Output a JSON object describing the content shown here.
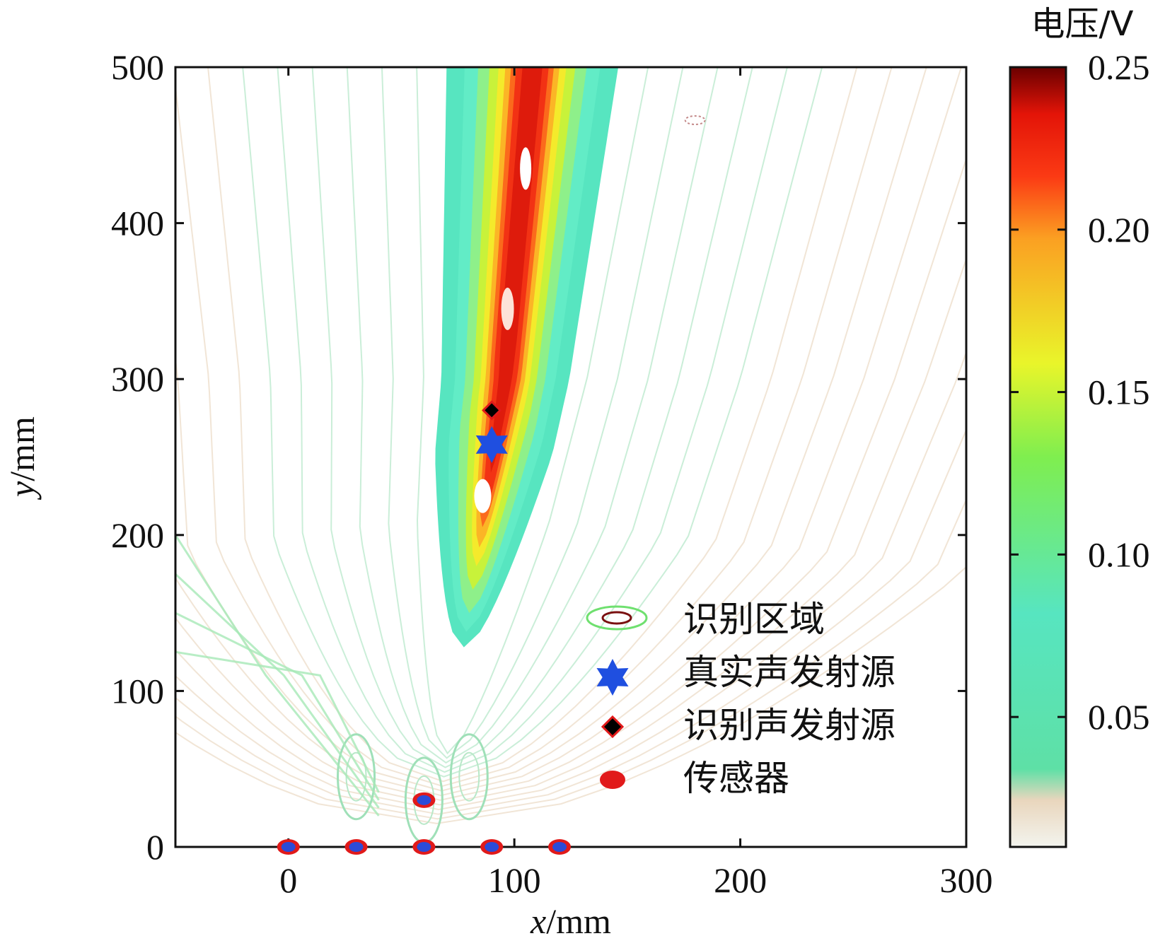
{
  "chart_data": {
    "type": "heatmap",
    "subtype": "contour",
    "xlabel": {
      "var": "x",
      "unit": "/mm"
    },
    "ylabel": {
      "var": "y",
      "unit": "/mm"
    },
    "xlim": [
      -50,
      300
    ],
    "ylim": [
      0,
      500
    ],
    "xticks": [
      0,
      100,
      200,
      300
    ],
    "yticks": [
      0,
      100,
      200,
      300,
      400,
      500
    ],
    "colorbar": {
      "title": "电压/V",
      "range": [
        0.01,
        0.25
      ],
      "ticks": [
        "0.05",
        "0.10",
        "0.15",
        "0.20",
        "0.25"
      ],
      "tick_values": [
        0.05,
        0.1,
        0.15,
        0.2,
        0.25
      ],
      "colors": [
        "#f3f4ee",
        "#e9d6bd",
        "#5ee0a6",
        "#57e5c0",
        "#7fee4f",
        "#e9f52a",
        "#fba022",
        "#fb3a14",
        "#e31408",
        "#6a0000"
      ]
    },
    "contour_peak": {
      "x": 96,
      "y": 300,
      "value": 0.24
    },
    "beam_axis": [
      [
        80,
        150
      ],
      [
        96,
        300
      ],
      [
        108,
        500
      ]
    ],
    "true_source": {
      "x": 90,
      "y": 258
    },
    "identified_source": {
      "x": 90,
      "y": 280
    },
    "sensors": [
      {
        "x": 0,
        "y": 0
      },
      {
        "x": 30,
        "y": 0
      },
      {
        "x": 60,
        "y": 0
      },
      {
        "x": 90,
        "y": 0
      },
      {
        "x": 120,
        "y": 0
      },
      {
        "x": 60,
        "y": 30
      }
    ],
    "legend": [
      {
        "label": "识别区域",
        "marker": "contour-ellipse"
      },
      {
        "label": "真实声发射源",
        "marker": "star",
        "color": "#1f4fe0"
      },
      {
        "label": "识别声发射源",
        "marker": "diamond",
        "color": "#000000",
        "edge": "#e11a1a"
      },
      {
        "label": "传感器",
        "marker": "circle",
        "color": "#e11a1a"
      }
    ],
    "legend_position": "lower-right"
  }
}
